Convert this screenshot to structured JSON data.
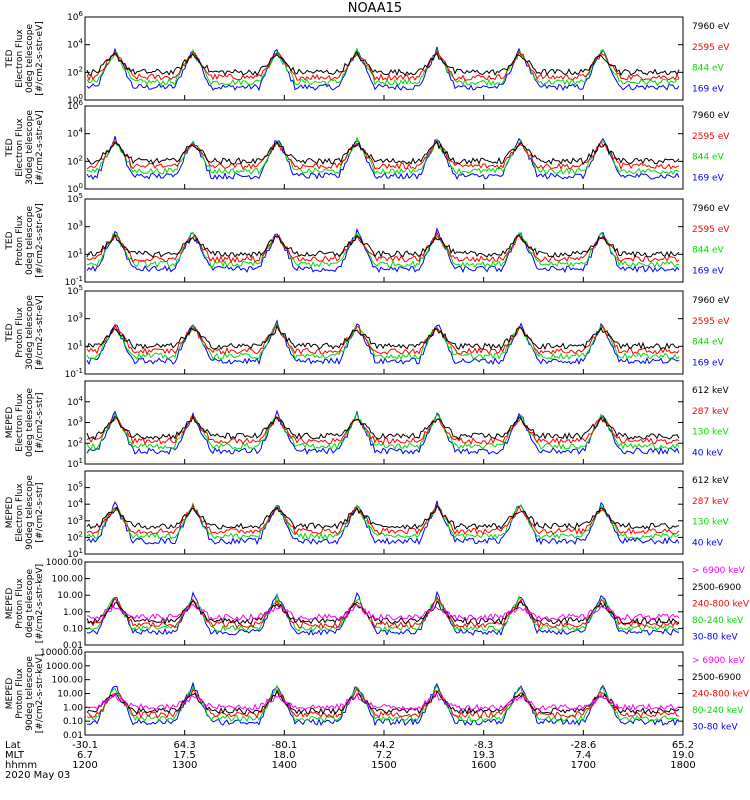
{
  "title": "NOAA15",
  "date_label": "2020 May 03",
  "x_axis": {
    "row_labels": [
      "Lat",
      "MLT",
      "hhmm"
    ],
    "rows": [
      [
        "-30.1",
        "64.3",
        "-80.1",
        "44.2",
        "-8.3",
        "-28.6",
        "65.2"
      ],
      [
        "6.7",
        "17.5",
        "18.0",
        "7.2",
        "19.3",
        "7.4",
        "19.0"
      ],
      [
        "1200",
        "1300",
        "1400",
        "1500",
        "1600",
        "1700",
        "1800"
      ]
    ]
  },
  "chart_data": [
    {
      "type": "line",
      "ylabel": [
        "TED",
        "Electron Flux",
        "0deg telescope",
        "[#/cm2-s-str-eV]"
      ],
      "scale": "log",
      "ylim": [
        1,
        1000000
      ],
      "yticks": [
        "10^0",
        "10^2",
        "10^4",
        "10^6"
      ],
      "series": [
        {
          "name": "7960 eV",
          "color": "#000000"
        },
        {
          "name": "2595 eV",
          "color": "#ff0000"
        },
        {
          "name": "844 eV",
          "color": "#00dd00"
        },
        {
          "name": "169 eV",
          "color": "#0000ff"
        }
      ]
    },
    {
      "type": "line",
      "ylabel": [
        "TED",
        "Electron Flux",
        "30deg telescope",
        "[#/cm2-s-str-eV]"
      ],
      "scale": "log",
      "ylim": [
        1,
        1000000
      ],
      "yticks": [
        "10^0",
        "10^2",
        "10^4",
        "10^6"
      ],
      "series": [
        {
          "name": "7960 eV",
          "color": "#000000"
        },
        {
          "name": "2595 eV",
          "color": "#ff0000"
        },
        {
          "name": "844 eV",
          "color": "#00dd00"
        },
        {
          "name": "169 eV",
          "color": "#0000ff"
        }
      ]
    },
    {
      "type": "line",
      "ylabel": [
        "TED",
        "Proton Flux",
        "0deg telescope",
        "[#/cm2-s-str-eV]"
      ],
      "scale": "log",
      "ylim": [
        0.1,
        100000
      ],
      "yticks": [
        "10^-1",
        "10^1",
        "10^3",
        "10^5"
      ],
      "series": [
        {
          "name": "7960 eV",
          "color": "#000000"
        },
        {
          "name": "2595 eV",
          "color": "#ff0000"
        },
        {
          "name": "844 eV",
          "color": "#00dd00"
        },
        {
          "name": "169 eV",
          "color": "#0000ff"
        }
      ]
    },
    {
      "type": "line",
      "ylabel": [
        "TED",
        "Proton Flux",
        "30deg telescope",
        "[#/cm2-s-str-eV]"
      ],
      "scale": "log",
      "ylim": [
        0.1,
        100000
      ],
      "yticks": [
        "10^-1",
        "10^1",
        "10^3",
        "10^5"
      ],
      "series": [
        {
          "name": "7960 eV",
          "color": "#000000"
        },
        {
          "name": "2595 eV",
          "color": "#ff0000"
        },
        {
          "name": "844 eV",
          "color": "#00dd00"
        },
        {
          "name": "169 eV",
          "color": "#0000ff"
        }
      ]
    },
    {
      "type": "line",
      "ylabel": [
        "MEPED",
        "Electron Flux",
        "0deg telescope",
        "[#/cm2-s-str]"
      ],
      "scale": "log",
      "ylim": [
        10,
        100000
      ],
      "yticks": [
        "10^1",
        "10^2",
        "10^3",
        "10^4"
      ],
      "series": [
        {
          "name": "612 keV",
          "color": "#000000"
        },
        {
          "name": "287 keV",
          "color": "#ff0000"
        },
        {
          "name": "130 keV",
          "color": "#00dd00"
        },
        {
          "name": "40 keV",
          "color": "#0000ff"
        }
      ]
    },
    {
      "type": "line",
      "ylabel": [
        "MEPED",
        "Electron Flux",
        "90deg telescope",
        "[#/cm2-s-str]"
      ],
      "scale": "log",
      "ylim": [
        10,
        1000000
      ],
      "yticks": [
        "10^1",
        "10^2",
        "10^3",
        "10^4",
        "10^5"
      ],
      "series": [
        {
          "name": "612 keV",
          "color": "#000000"
        },
        {
          "name": "287 keV",
          "color": "#ff0000"
        },
        {
          "name": "130 keV",
          "color": "#00dd00"
        },
        {
          "name": "40 keV",
          "color": "#0000ff"
        }
      ]
    },
    {
      "type": "line",
      "ylabel": [
        "MEPED",
        "Proton Flux",
        "0deg telescope",
        "[#/cm2-s-str-keV]"
      ],
      "scale": "log",
      "ylim": [
        0.01,
        1000
      ],
      "yticks": [
        "0.01",
        "0.10",
        "1.00",
        "10.00",
        "100.00",
        "1000.00"
      ],
      "series": [
        {
          "name": "> 6900 keV",
          "color": "#ff00ff"
        },
        {
          "name": "2500-6900",
          "color": "#000000"
        },
        {
          "name": "240-800 keV",
          "color": "#ff0000"
        },
        {
          "name": "80-240 keV",
          "color": "#00dd00"
        },
        {
          "name": "30-80 keV",
          "color": "#0000ff"
        }
      ]
    },
    {
      "type": "line",
      "ylabel": [
        "MEPED",
        "Proton Flux",
        "90deg telescope",
        "[#/cm2-s-str-keV]"
      ],
      "scale": "log",
      "ylim": [
        0.01,
        10000
      ],
      "yticks": [
        "0.01",
        "0.10",
        "1.00",
        "10.00",
        "100.00",
        "1000.00",
        "10000.00"
      ],
      "series": [
        {
          "name": "> 6900 keV",
          "color": "#ff00ff"
        },
        {
          "name": "2500-6900",
          "color": "#000000"
        },
        {
          "name": "240-800 keV",
          "color": "#ff0000"
        },
        {
          "name": "80-240 keV",
          "color": "#00dd00"
        },
        {
          "name": "30-80 keV",
          "color": "#0000ff"
        }
      ]
    }
  ]
}
